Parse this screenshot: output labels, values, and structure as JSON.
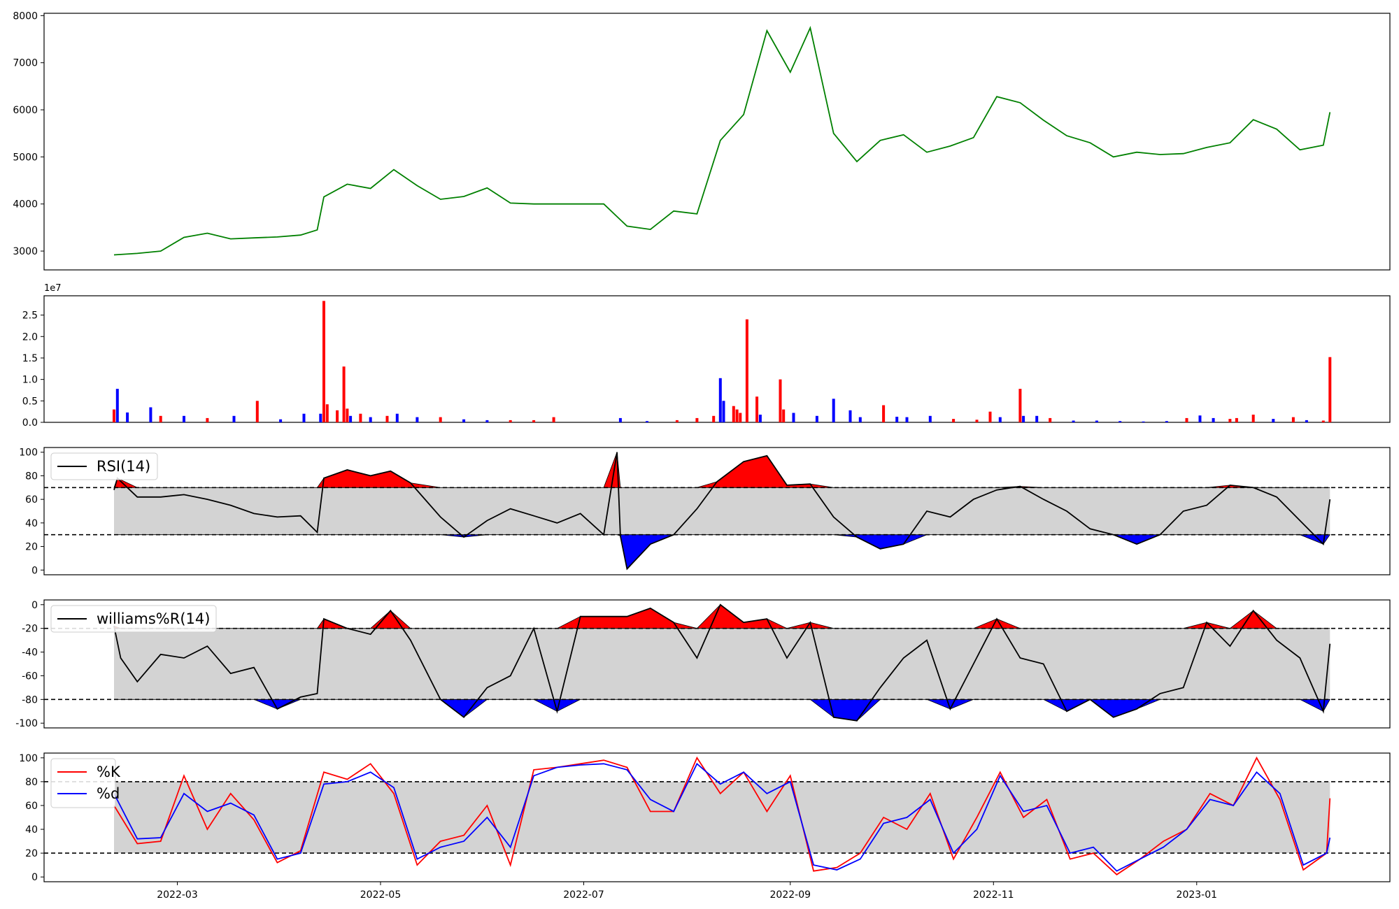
{
  "chart_data": [
    {
      "type": "line",
      "title": "",
      "xlabel": "",
      "ylabel": "",
      "ylim": [
        2600,
        8050
      ],
      "yticks": [
        3000,
        4000,
        5000,
        6000,
        7000,
        8000
      ],
      "colors": {
        "line": "#008000"
      },
      "x": [
        "2022-02-10",
        "2022-02-17",
        "2022-02-24",
        "2022-03-03",
        "2022-03-10",
        "2022-03-17",
        "2022-03-24",
        "2022-03-31",
        "2022-04-07",
        "2022-04-12",
        "2022-04-14",
        "2022-04-21",
        "2022-04-28",
        "2022-05-05",
        "2022-05-12",
        "2022-05-19",
        "2022-05-26",
        "2022-06-02",
        "2022-06-09",
        "2022-06-16",
        "2022-06-23",
        "2022-06-30",
        "2022-07-07",
        "2022-07-14",
        "2022-07-21",
        "2022-07-28",
        "2022-08-04",
        "2022-08-11",
        "2022-08-18",
        "2022-08-25",
        "2022-09-01",
        "2022-09-07",
        "2022-09-14",
        "2022-09-21",
        "2022-09-28",
        "2022-10-05",
        "2022-10-12",
        "2022-10-19",
        "2022-10-26",
        "2022-11-02",
        "2022-11-09",
        "2022-11-16",
        "2022-11-23",
        "2022-11-30",
        "2022-12-07",
        "2022-12-14",
        "2022-12-21",
        "2022-12-28",
        "2023-01-04",
        "2023-01-11",
        "2023-01-18",
        "2023-01-25",
        "2023-02-01",
        "2023-02-08",
        "2023-02-10"
      ],
      "values": [
        2920,
        2950,
        3000,
        3290,
        3380,
        3260,
        3280,
        3300,
        3340,
        3450,
        4150,
        4420,
        4330,
        4730,
        4390,
        4100,
        4160,
        4340,
        4020,
        4000,
        4000,
        4000,
        4000,
        3530,
        3460,
        3850,
        3790,
        5350,
        5900,
        7680,
        6800,
        7740,
        5500,
        4900,
        5350,
        5470,
        5100,
        5230,
        5410,
        6280,
        6150,
        5780,
        5450,
        5300,
        5000,
        5100,
        5050,
        5070,
        5200,
        5300,
        5790,
        5590,
        5150,
        5250,
        5950
      ]
    },
    {
      "type": "bar",
      "title": "",
      "xlabel": "",
      "ylabel": "",
      "scale_label": "1e7",
      "ylim": [
        0,
        2.95
      ],
      "yticks": [
        "0.0",
        "0.5",
        "1.0",
        "1.5",
        "2.0",
        "2.5"
      ],
      "colors": {
        "up": "#ff0000",
        "down": "#0000ff"
      },
      "x": [
        "2022-02-10",
        "2022-02-11",
        "2022-02-14",
        "2022-02-21",
        "2022-02-24",
        "2022-03-03",
        "2022-03-10",
        "2022-03-18",
        "2022-03-25",
        "2022-04-01",
        "2022-04-08",
        "2022-04-13",
        "2022-04-14",
        "2022-04-15",
        "2022-04-18",
        "2022-04-20",
        "2022-04-21",
        "2022-04-22",
        "2022-04-25",
        "2022-04-28",
        "2022-05-03",
        "2022-05-06",
        "2022-05-12",
        "2022-05-19",
        "2022-05-26",
        "2022-06-02",
        "2022-06-09",
        "2022-06-16",
        "2022-06-22",
        "2022-07-12",
        "2022-07-20",
        "2022-07-29",
        "2022-08-04",
        "2022-08-09",
        "2022-08-11",
        "2022-08-12",
        "2022-08-15",
        "2022-08-16",
        "2022-08-17",
        "2022-08-19",
        "2022-08-22",
        "2022-08-23",
        "2022-08-29",
        "2022-08-30",
        "2022-09-02",
        "2022-09-09",
        "2022-09-14",
        "2022-09-19",
        "2022-09-22",
        "2022-09-29",
        "2022-10-03",
        "2022-10-06",
        "2022-10-13",
        "2022-10-20",
        "2022-10-27",
        "2022-10-31",
        "2022-11-03",
        "2022-11-09",
        "2022-11-10",
        "2022-11-14",
        "2022-11-18",
        "2022-11-25",
        "2022-12-02",
        "2022-12-09",
        "2022-12-16",
        "2022-12-23",
        "2022-12-29",
        "2023-01-02",
        "2023-01-06",
        "2023-01-11",
        "2023-01-13",
        "2023-01-18",
        "2023-01-24",
        "2023-01-30",
        "2023-02-03",
        "2023-02-08",
        "2023-02-10"
      ],
      "values": [
        0.3,
        0.78,
        0.23,
        0.35,
        0.15,
        0.15,
        0.1,
        0.15,
        0.5,
        0.07,
        0.2,
        0.2,
        2.83,
        0.42,
        0.28,
        1.3,
        0.32,
        0.15,
        0.2,
        0.12,
        0.15,
        0.2,
        0.12,
        0.12,
        0.07,
        0.05,
        0.05,
        0.05,
        0.12,
        0.1,
        0.03,
        0.05,
        0.1,
        0.15,
        1.03,
        0.5,
        0.38,
        0.3,
        0.22,
        2.4,
        0.6,
        0.18,
        1.0,
        0.3,
        0.22,
        0.15,
        0.55,
        0.28,
        0.12,
        0.4,
        0.13,
        0.12,
        0.15,
        0.08,
        0.06,
        0.25,
        0.12,
        0.78,
        0.15,
        0.15,
        0.1,
        0.04,
        0.04,
        0.03,
        0.02,
        0.03,
        0.1,
        0.16,
        0.1,
        0.08,
        0.1,
        0.18,
        0.08,
        0.12,
        0.05,
        0.04,
        1.52
      ],
      "dirs": [
        "u",
        "d",
        "d",
        "d",
        "u",
        "d",
        "u",
        "d",
        "u",
        "d",
        "d",
        "d",
        "u",
        "u",
        "u",
        "u",
        "u",
        "d",
        "u",
        "d",
        "u",
        "d",
        "d",
        "u",
        "d",
        "d",
        "u",
        "u",
        "u",
        "d",
        "d",
        "u",
        "u",
        "u",
        "d",
        "d",
        "u",
        "u",
        "u",
        "u",
        "u",
        "d",
        "u",
        "u",
        "d",
        "d",
        "d",
        "d",
        "d",
        "u",
        "d",
        "d",
        "d",
        "u",
        "u",
        "u",
        "d",
        "u",
        "d",
        "d",
        "u",
        "d",
        "d",
        "d",
        "d",
        "d",
        "u",
        "d",
        "d",
        "u",
        "u",
        "u",
        "d",
        "u",
        "d",
        "u",
        "u"
      ]
    },
    {
      "type": "line",
      "title": "",
      "xlabel": "",
      "ylabel": "",
      "legend": [
        "RSI(14)"
      ],
      "legend_position": "upper-left",
      "ylim": [
        -4,
        104
      ],
      "yticks": [
        0,
        20,
        40,
        60,
        80,
        100
      ],
      "upper": 70,
      "lower": 30,
      "colors": {
        "line": "#000000",
        "band": "#d3d3d3",
        "over": "#ff0000",
        "under": "#0000ff"
      },
      "x": [
        "2022-02-10",
        "2022-02-11",
        "2022-02-17",
        "2022-02-24",
        "2022-03-03",
        "2022-03-10",
        "2022-03-17",
        "2022-03-24",
        "2022-03-31",
        "2022-04-07",
        "2022-04-12",
        "2022-04-14",
        "2022-04-21",
        "2022-04-28",
        "2022-05-04",
        "2022-05-10",
        "2022-05-19",
        "2022-05-26",
        "2022-06-02",
        "2022-06-09",
        "2022-06-16",
        "2022-06-23",
        "2022-06-30",
        "2022-07-07",
        "2022-07-11",
        "2022-07-12",
        "2022-07-14",
        "2022-07-21",
        "2022-07-28",
        "2022-08-04",
        "2022-08-10",
        "2022-08-18",
        "2022-08-25",
        "2022-08-31",
        "2022-09-07",
        "2022-09-14",
        "2022-09-21",
        "2022-09-28",
        "2022-10-05",
        "2022-10-12",
        "2022-10-19",
        "2022-10-26",
        "2022-11-02",
        "2022-11-09",
        "2022-11-16",
        "2022-11-23",
        "2022-11-30",
        "2022-12-07",
        "2022-12-14",
        "2022-12-21",
        "2022-12-28",
        "2023-01-04",
        "2023-01-11",
        "2023-01-18",
        "2023-01-25",
        "2023-02-01",
        "2023-02-08",
        "2023-02-10"
      ],
      "values": [
        68,
        78,
        62,
        62,
        64,
        60,
        55,
        48,
        45,
        46,
        32,
        78,
        85,
        80,
        84,
        74,
        45,
        28,
        42,
        52,
        46,
        40,
        48,
        30,
        100,
        29,
        1,
        22,
        30,
        52,
        75,
        92,
        97,
        72,
        73,
        45,
        28,
        18,
        22,
        50,
        45,
        60,
        68,
        71,
        60,
        50,
        35,
        30,
        22,
        30,
        50,
        55,
        72,
        70,
        62,
        42,
        22,
        60
      ]
    },
    {
      "type": "line",
      "title": "",
      "xlabel": "",
      "ylabel": "",
      "legend": [
        "williams%R(14)"
      ],
      "legend_position": "upper-left",
      "ylim": [
        -104,
        4
      ],
      "yticks": [
        0,
        -20,
        -40,
        -60,
        -80,
        -100
      ],
      "upper": -20,
      "lower": -80,
      "colors": {
        "line": "#000000",
        "band": "#d3d3d3",
        "over": "#ff0000",
        "under": "#0000ff"
      },
      "x": [
        "2022-02-10",
        "2022-02-12",
        "2022-02-17",
        "2022-02-24",
        "2022-03-03",
        "2022-03-10",
        "2022-03-17",
        "2022-03-24",
        "2022-03-31",
        "2022-04-07",
        "2022-04-12",
        "2022-04-14",
        "2022-04-21",
        "2022-04-28",
        "2022-05-04",
        "2022-05-10",
        "2022-05-19",
        "2022-05-26",
        "2022-06-02",
        "2022-06-09",
        "2022-06-16",
        "2022-06-23",
        "2022-06-30",
        "2022-07-07",
        "2022-07-14",
        "2022-07-21",
        "2022-07-28",
        "2022-08-04",
        "2022-08-11",
        "2022-08-18",
        "2022-08-25",
        "2022-08-31",
        "2022-09-07",
        "2022-09-14",
        "2022-09-21",
        "2022-09-28",
        "2022-10-05",
        "2022-10-12",
        "2022-10-19",
        "2022-10-26",
        "2022-11-02",
        "2022-11-09",
        "2022-11-16",
        "2022-11-23",
        "2022-11-30",
        "2022-12-07",
        "2022-12-14",
        "2022-12-21",
        "2022-12-28",
        "2023-01-04",
        "2023-01-11",
        "2023-01-18",
        "2023-01-25",
        "2023-02-01",
        "2023-02-08",
        "2023-02-10"
      ],
      "values": [
        -18,
        -45,
        -65,
        -42,
        -45,
        -35,
        -58,
        -53,
        -88,
        -78,
        -75,
        -12,
        -20,
        -25,
        -5,
        -30,
        -80,
        -95,
        -70,
        -60,
        -20,
        -90,
        -10,
        -10,
        -10,
        -3,
        -15,
        -45,
        0,
        -15,
        -12,
        -45,
        -15,
        -95,
        -98,
        -70,
        -45,
        -30,
        -88,
        -50,
        -12,
        -45,
        -50,
        -90,
        -80,
        -95,
        -88,
        -75,
        -70,
        -15,
        -35,
        -5,
        -30,
        -45,
        -90,
        -33
      ]
    },
    {
      "type": "line",
      "title": "",
      "xlabel": "",
      "ylabel": "",
      "legend": [
        "%K",
        "%d"
      ],
      "legend_position": "upper-left",
      "ylim": [
        -4,
        104
      ],
      "yticks": [
        0,
        20,
        40,
        60,
        80,
        100
      ],
      "upper": 80,
      "lower": 20,
      "colors": {
        "band": "#d3d3d3"
      },
      "x": [
        "2022-02-10",
        "2022-02-17",
        "2022-02-24",
        "2022-03-03",
        "2022-03-10",
        "2022-03-17",
        "2022-03-24",
        "2022-03-31",
        "2022-04-07",
        "2022-04-14",
        "2022-04-21",
        "2022-04-28",
        "2022-05-05",
        "2022-05-12",
        "2022-05-19",
        "2022-05-26",
        "2022-06-02",
        "2022-06-09",
        "2022-06-16",
        "2022-06-23",
        "2022-06-30",
        "2022-07-07",
        "2022-07-14",
        "2022-07-21",
        "2022-07-28",
        "2022-08-04",
        "2022-08-11",
        "2022-08-18",
        "2022-08-25",
        "2022-09-01",
        "2022-09-08",
        "2022-09-15",
        "2022-09-22",
        "2022-09-29",
        "2022-10-06",
        "2022-10-13",
        "2022-10-20",
        "2022-10-27",
        "2022-11-03",
        "2022-11-10",
        "2022-11-17",
        "2022-11-24",
        "2022-12-01",
        "2022-12-08",
        "2022-12-15",
        "2022-12-22",
        "2022-12-29",
        "2023-01-05",
        "2023-01-12",
        "2023-01-19",
        "2023-01-26",
        "2023-02-02",
        "2023-02-09",
        "2023-02-10"
      ],
      "series": [
        {
          "name": "%K",
          "color": "#ff0000",
          "values": [
            60,
            28,
            30,
            85,
            40,
            70,
            48,
            12,
            22,
            88,
            82,
            95,
            70,
            10,
            30,
            35,
            60,
            10,
            90,
            92,
            95,
            98,
            92,
            55,
            55,
            100,
            70,
            88,
            55,
            85,
            5,
            8,
            20,
            50,
            40,
            70,
            15,
            50,
            88,
            50,
            65,
            15,
            20,
            2,
            15,
            30,
            40,
            70,
            60,
            100,
            65,
            6,
            20,
            66
          ]
        },
        {
          "name": "%d",
          "color": "#0000ff",
          "values": [
            70,
            32,
            33,
            70,
            55,
            62,
            52,
            15,
            20,
            78,
            80,
            88,
            75,
            15,
            25,
            30,
            50,
            25,
            85,
            92,
            94,
            95,
            90,
            65,
            55,
            95,
            78,
            88,
            70,
            80,
            10,
            6,
            15,
            45,
            50,
            65,
            20,
            40,
            85,
            55,
            60,
            20,
            25,
            5,
            15,
            25,
            40,
            65,
            60,
            88,
            70,
            10,
            20,
            33
          ]
        }
      ]
    }
  ],
  "x_axis": {
    "min": "2022-01-20",
    "max": "2023-02-28",
    "ticks": [
      {
        "date": "2022-03-01",
        "label": "2022-03"
      },
      {
        "date": "2022-05-01",
        "label": "2022-05"
      },
      {
        "date": "2022-07-01",
        "label": "2022-07"
      },
      {
        "date": "2022-09-01",
        "label": "2022-09"
      },
      {
        "date": "2022-11-01",
        "label": "2022-11"
      },
      {
        "date": "2023-01-01",
        "label": "2023-01"
      }
    ]
  }
}
